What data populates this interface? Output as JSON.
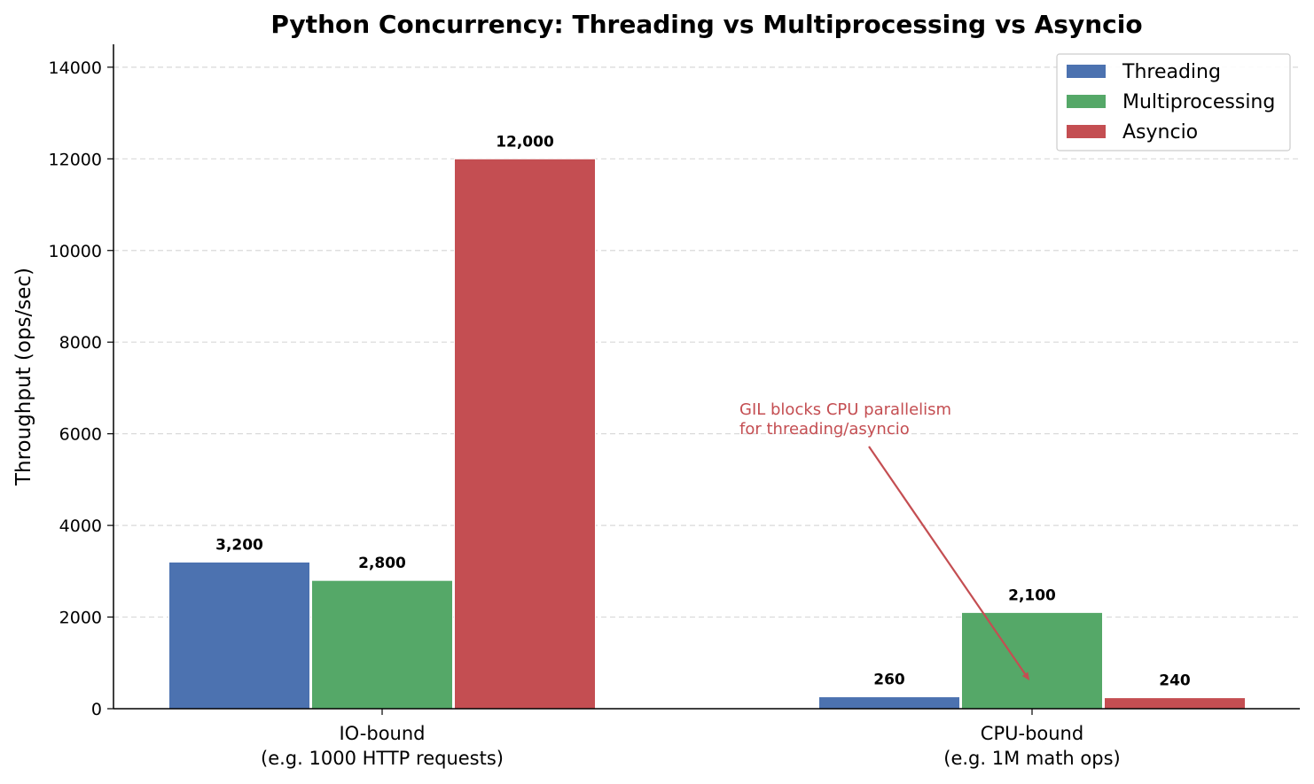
{
  "chart_data": {
    "type": "bar",
    "title": "Python Concurrency: Threading vs Multiprocessing vs Asyncio",
    "ylabel": "Throughput (ops/sec)",
    "xlabel": "",
    "categories": [
      [
        "IO-bound",
        "(e.g. 1000 HTTP requests)"
      ],
      [
        "CPU-bound",
        "(e.g. 1M math ops)"
      ]
    ],
    "series": [
      {
        "name": "Threading",
        "color": "#4c72b0",
        "values": [
          3200,
          260
        ],
        "labels": [
          "3,200",
          "260"
        ]
      },
      {
        "name": "Multiprocessing",
        "color": "#55a868",
        "values": [
          2800,
          2100
        ],
        "labels": [
          "2,800",
          "2,100"
        ]
      },
      {
        "name": "Asyncio",
        "color": "#c44e52",
        "values": [
          12000,
          240
        ],
        "labels": [
          "12,000",
          "240"
        ]
      }
    ],
    "ylim": [
      0,
      14500
    ],
    "yticks": [
      0,
      2000,
      4000,
      6000,
      8000,
      10000,
      12000,
      14000
    ],
    "ytick_labels": [
      "0",
      "2000",
      "4000",
      "6000",
      "8000",
      "10000",
      "12000",
      "14000"
    ],
    "grid": "y-dashed",
    "legend_position": "top-right",
    "annotation": {
      "lines": [
        "GIL blocks CPU parallelism",
        "for threading/asyncio"
      ],
      "color": "#c44e52",
      "points_to": {
        "category": "CPU-bound",
        "value": 300
      }
    }
  }
}
